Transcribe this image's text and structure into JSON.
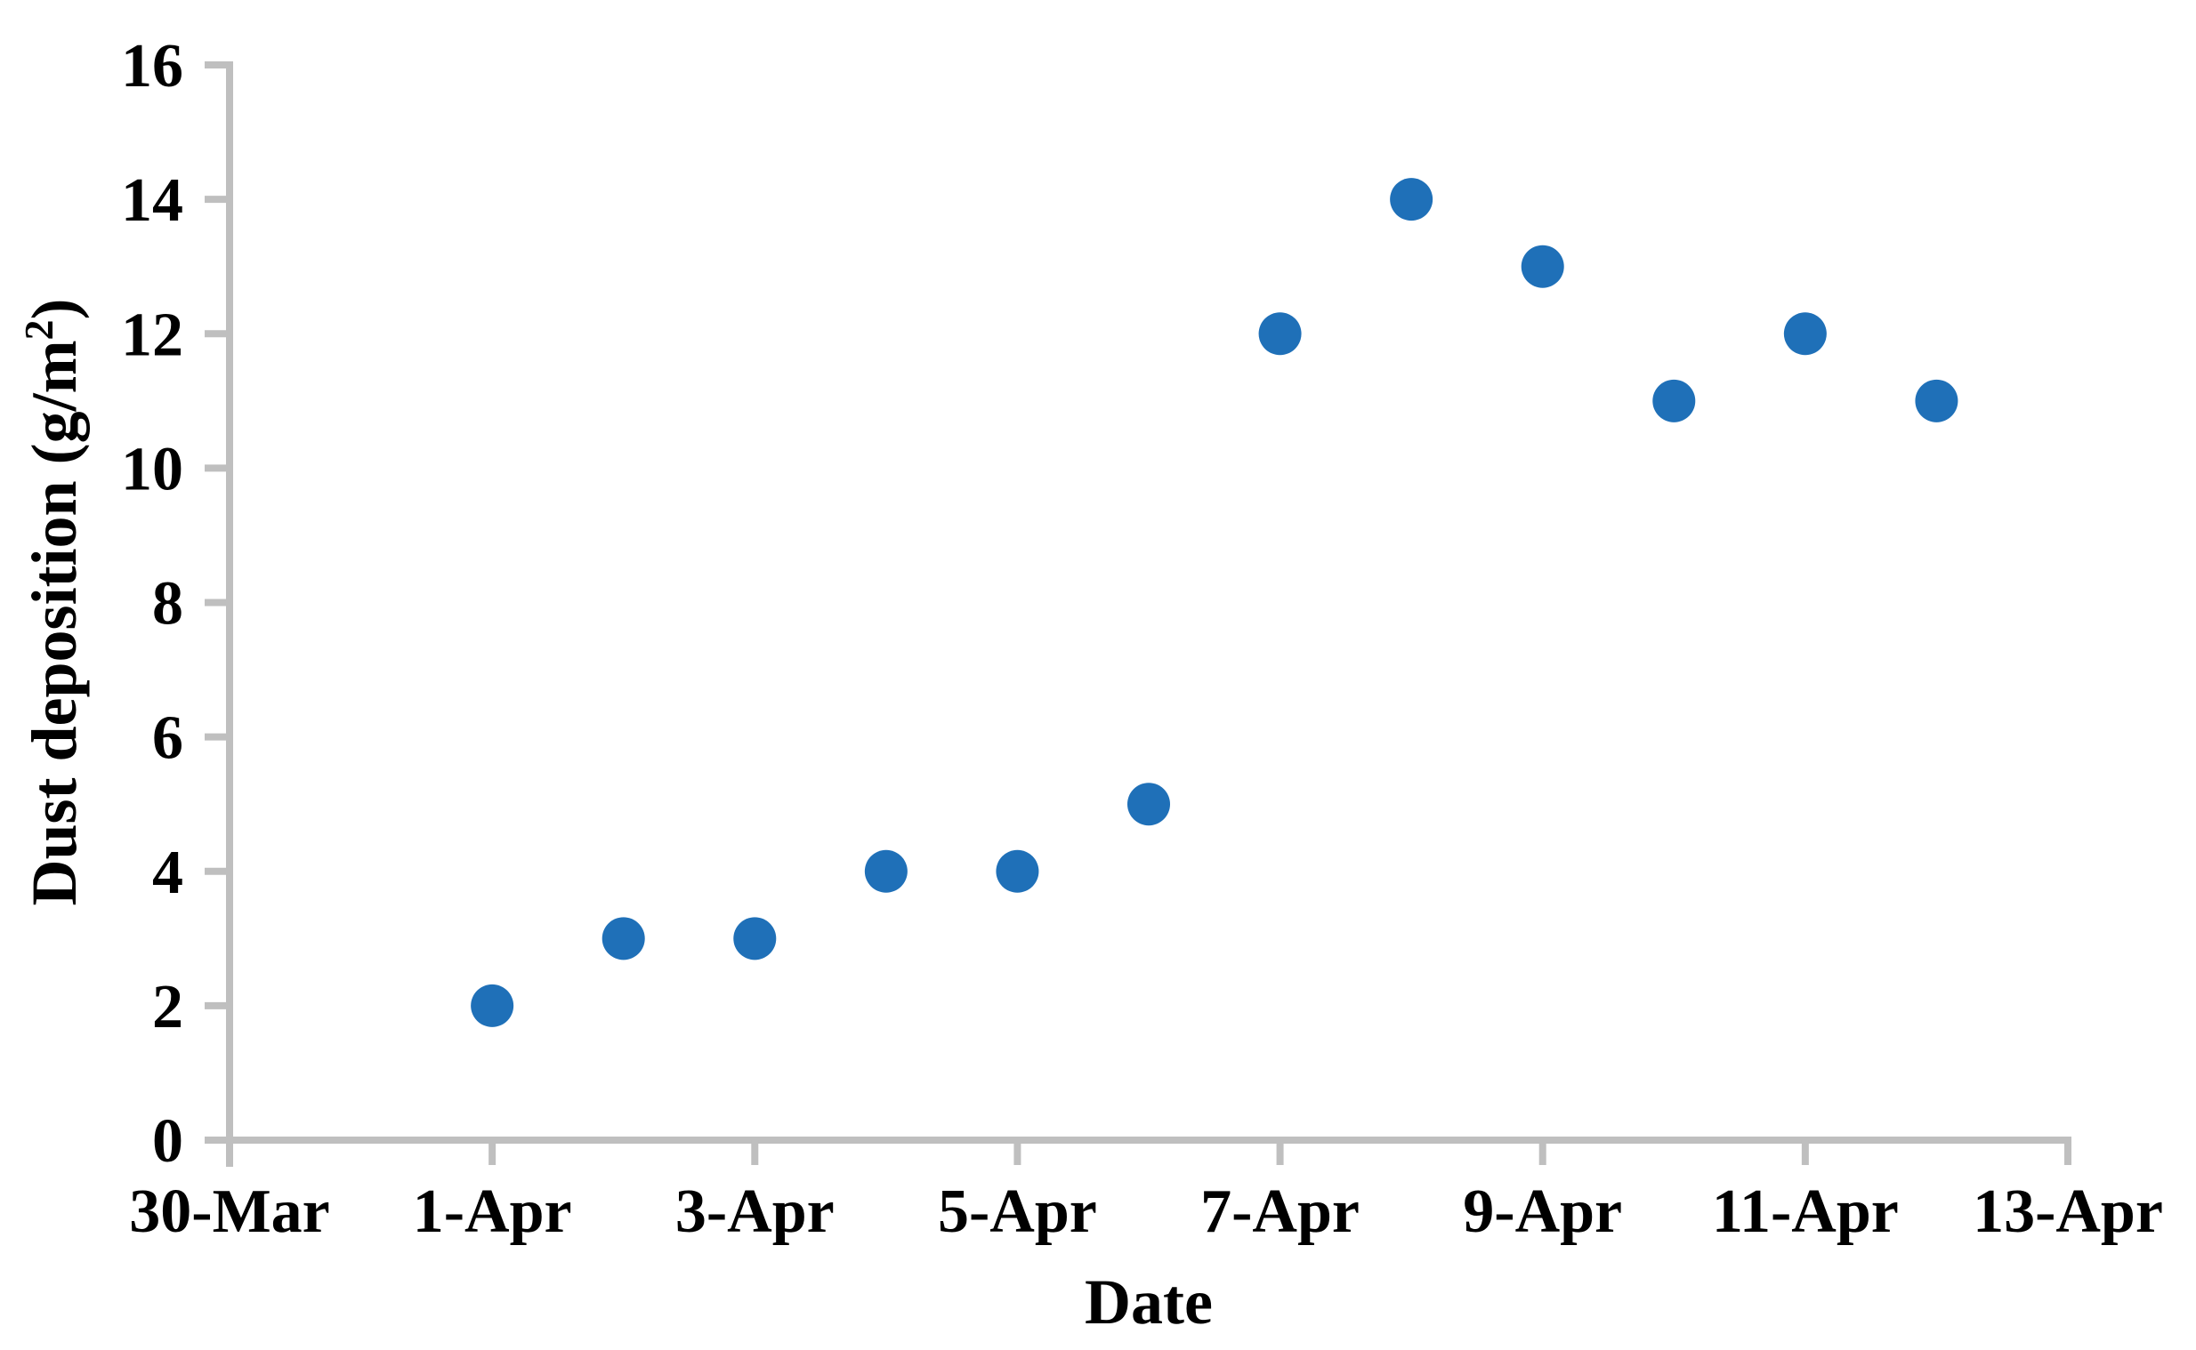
{
  "chart_data": {
    "type": "scatter",
    "title": "",
    "xlabel": "Date",
    "ylabel": "Dust deposition (g/m²)",
    "ylabel_parts": {
      "pre": "Dust deposition (g/m",
      "sup": "2",
      "post": ")"
    },
    "x_axis": {
      "tick_labels": [
        "30-Mar",
        "1-Apr",
        "3-Apr",
        "5-Apr",
        "7-Apr",
        "9-Apr",
        "11-Apr",
        "13-Apr"
      ],
      "tick_day_offsets": [
        0,
        2,
        4,
        6,
        8,
        10,
        12,
        14
      ],
      "range_days": [
        0,
        14
      ]
    },
    "y_axis": {
      "tick_labels": [
        "0",
        "2",
        "4",
        "6",
        "8",
        "10",
        "12",
        "14",
        "16"
      ],
      "tick_values": [
        0,
        2,
        4,
        6,
        8,
        10,
        12,
        14,
        16
      ],
      "ylim": [
        0,
        16
      ]
    },
    "points": [
      {
        "date": "1-Apr",
        "day_offset": 2,
        "value": 2
      },
      {
        "date": "2-Apr",
        "day_offset": 3,
        "value": 3
      },
      {
        "date": "3-Apr",
        "day_offset": 4,
        "value": 3
      },
      {
        "date": "4-Apr",
        "day_offset": 5,
        "value": 4
      },
      {
        "date": "5-Apr",
        "day_offset": 6,
        "value": 4
      },
      {
        "date": "6-Apr",
        "day_offset": 7,
        "value": 5
      },
      {
        "date": "7-Apr",
        "day_offset": 8,
        "value": 12
      },
      {
        "date": "8-Apr",
        "day_offset": 9,
        "value": 14
      },
      {
        "date": "9-Apr",
        "day_offset": 10,
        "value": 13
      },
      {
        "date": "10-Apr",
        "day_offset": 11,
        "value": 11
      },
      {
        "date": "11-Apr",
        "day_offset": 12,
        "value": 12
      },
      {
        "date": "12-Apr",
        "day_offset": 13,
        "value": 11
      }
    ],
    "legend": "none",
    "grid": false,
    "colors": {
      "marker": "#1F70B8",
      "axis": "#BFBFBF",
      "text": "#000000",
      "background": "#FFFFFF"
    }
  }
}
